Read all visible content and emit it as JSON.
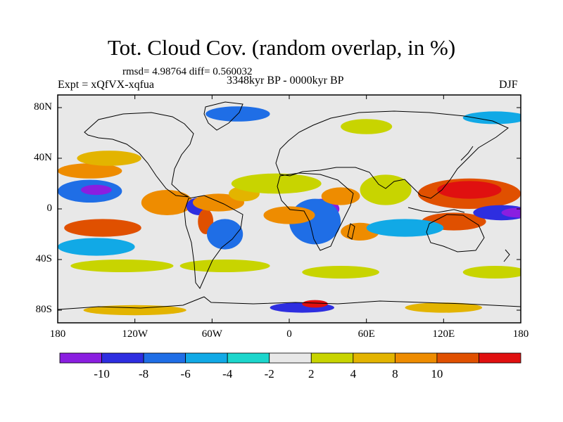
{
  "title": "Tot. Cloud Cov. (random overlap, in %)",
  "stats": "rmsd= 4.98764  diff= 0.560032",
  "experiment": "Expt = xQfVX-xqfua",
  "period": "3348kyr BP - 0000kyr BP",
  "season": "DJF",
  "map": {
    "lat_labels": [
      {
        "value": 80,
        "label": "80N"
      },
      {
        "value": 40,
        "label": "40N"
      },
      {
        "value": 0,
        "label": "0"
      },
      {
        "value": -40,
        "label": "40S"
      },
      {
        "value": -80,
        "label": "80S"
      }
    ],
    "lon_labels": [
      {
        "value": -180,
        "label": "180"
      },
      {
        "value": -120,
        "label": "120W"
      },
      {
        "value": -60,
        "label": "60W"
      },
      {
        "value": 0,
        "label": "0"
      },
      {
        "value": 60,
        "label": "60E"
      },
      {
        "value": 120,
        "label": "120E"
      },
      {
        "value": 180,
        "label": "180"
      }
    ],
    "lon_range": [
      -180,
      180
    ],
    "lat_range": [
      -90,
      90
    ],
    "anomaly_regions": [
      {
        "lon": 75,
        "lat": 15,
        "rx": 20,
        "ry": 12,
        "level": 1
      },
      {
        "lon": 140,
        "lat": 12,
        "rx": 40,
        "ry": 12,
        "level": 4
      },
      {
        "lon": 140,
        "lat": 15,
        "rx": 25,
        "ry": 7,
        "level": 5
      },
      {
        "lon": 128,
        "lat": -10,
        "rx": 25,
        "ry": 7,
        "level": 4
      },
      {
        "lon": 165,
        "lat": -3,
        "rx": 22,
        "ry": 6,
        "level": -4
      },
      {
        "lon": 180,
        "lat": -3,
        "rx": 15,
        "ry": 4,
        "level": -5
      },
      {
        "lon": -155,
        "lat": 14,
        "rx": 25,
        "ry": 9,
        "level": -3
      },
      {
        "lon": -150,
        "lat": 15,
        "rx": 12,
        "ry": 4,
        "level": -5
      },
      {
        "lon": -155,
        "lat": 30,
        "rx": 25,
        "ry": 6,
        "level": 3
      },
      {
        "lon": -145,
        "lat": -15,
        "rx": 30,
        "ry": 7,
        "level": 4
      },
      {
        "lon": -150,
        "lat": -30,
        "rx": 30,
        "ry": 7,
        "level": -2
      },
      {
        "lon": -95,
        "lat": 5,
        "rx": 20,
        "ry": 10,
        "level": 3
      },
      {
        "lon": -70,
        "lat": 2,
        "rx": 10,
        "ry": 7,
        "level": -4
      },
      {
        "lon": -65,
        "lat": -10,
        "rx": 6,
        "ry": 10,
        "level": 4
      },
      {
        "lon": -50,
        "lat": -20,
        "rx": 14,
        "ry": 12,
        "level": -3
      },
      {
        "lon": -55,
        "lat": 5,
        "rx": 20,
        "ry": 7,
        "level": 3
      },
      {
        "lon": -35,
        "lat": 12,
        "rx": 12,
        "ry": 6,
        "level": 2
      },
      {
        "lon": 25,
        "lat": 0,
        "rx": 14,
        "ry": 8,
        "level": -5
      },
      {
        "lon": 20,
        "lat": -10,
        "rx": 20,
        "ry": 18,
        "level": -3
      },
      {
        "lon": 0,
        "lat": -5,
        "rx": 20,
        "ry": 7,
        "level": 3
      },
      {
        "lon": -10,
        "lat": 20,
        "rx": 35,
        "ry": 8,
        "level": 1
      },
      {
        "lon": 40,
        "lat": 10,
        "rx": 15,
        "ry": 7,
        "level": 3
      },
      {
        "lon": 55,
        "lat": -18,
        "rx": 15,
        "ry": 7,
        "level": 3
      },
      {
        "lon": 90,
        "lat": -15,
        "rx": 30,
        "ry": 7,
        "level": -2
      },
      {
        "lon": -140,
        "lat": 40,
        "rx": 25,
        "ry": 6,
        "level": 2
      },
      {
        "lon": -130,
        "lat": -45,
        "rx": 40,
        "ry": 5,
        "level": 1
      },
      {
        "lon": -50,
        "lat": -45,
        "rx": 35,
        "ry": 5,
        "level": 1
      },
      {
        "lon": 40,
        "lat": -50,
        "rx": 30,
        "ry": 5,
        "level": 1
      },
      {
        "lon": 160,
        "lat": -50,
        "rx": 25,
        "ry": 5,
        "level": 1
      },
      {
        "lon": -40,
        "lat": 75,
        "rx": 25,
        "ry": 6,
        "level": -3
      },
      {
        "lon": 60,
        "lat": 65,
        "rx": 20,
        "ry": 6,
        "level": 1
      },
      {
        "lon": 160,
        "lat": 72,
        "rx": 25,
        "ry": 5,
        "level": -2
      },
      {
        "lon": -120,
        "lat": -80,
        "rx": 40,
        "ry": 4,
        "level": 2
      },
      {
        "lon": 10,
        "lat": -78,
        "rx": 25,
        "ry": 4,
        "level": -4
      },
      {
        "lon": 20,
        "lat": -75,
        "rx": 10,
        "ry": 3,
        "level": 5
      },
      {
        "lon": 120,
        "lat": -78,
        "rx": 30,
        "ry": 4,
        "level": 2
      }
    ]
  },
  "colorbar": {
    "colors": [
      "#8a1ee0",
      "#2e2ee0",
      "#1f6ee6",
      "#11a9e6",
      "#1cd6cc",
      "#e8e8e8",
      "#c8d400",
      "#e3b400",
      "#ee8c00",
      "#e05000",
      "#e01010"
    ],
    "labels": [
      "-10",
      "-8",
      "-6",
      "-4",
      "-2",
      "2",
      "4",
      "8",
      "10"
    ]
  },
  "level_colors": {
    "-5": "#8a1ee0",
    "-4": "#2e2ee0",
    "-3": "#1f6ee6",
    "-2": "#11a9e6",
    "-1": "#1cd6cc",
    "1": "#c8d400",
    "2": "#e3b400",
    "3": "#ee8c00",
    "4": "#e05000",
    "5": "#e01010"
  }
}
